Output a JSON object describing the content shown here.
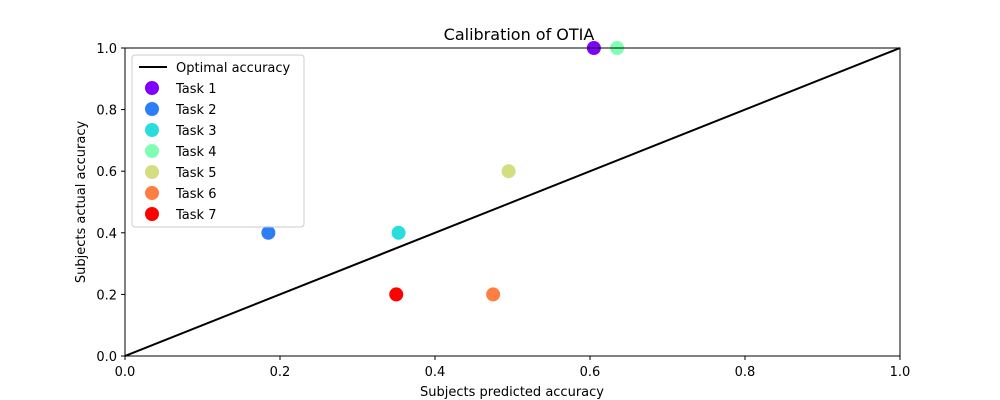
{
  "chart_data": {
    "type": "scatter",
    "title": "Calibration of OTIA",
    "xlabel": "Subjects predicted accuracy",
    "ylabel": "Subjects actual accuracy",
    "xlim": [
      0.0,
      1.0
    ],
    "ylim": [
      0.0,
      1.0
    ],
    "xticks": [
      "0.0",
      "0.2",
      "0.4",
      "0.6",
      "0.8",
      "1.0"
    ],
    "yticks": [
      "0.0",
      "0.2",
      "0.4",
      "0.6",
      "0.8",
      "1.0"
    ],
    "grid": false,
    "legend_position": "top-left",
    "reference_line": {
      "name": "Optimal accuracy",
      "color": "#000000",
      "x": [
        0.0,
        1.0
      ],
      "y": [
        0.0,
        1.0
      ]
    },
    "series": [
      {
        "name": "Task 1",
        "color": "#8000ff",
        "x": 0.605,
        "y": 1.0
      },
      {
        "name": "Task 2",
        "color": "#2c7ef7",
        "x": 0.185,
        "y": 0.4
      },
      {
        "name": "Task 3",
        "color": "#2adddd",
        "x": 0.353,
        "y": 0.4
      },
      {
        "name": "Task 4",
        "color": "#80ffb4",
        "x": 0.635,
        "y": 1.0
      },
      {
        "name": "Task 5",
        "color": "#d4dd80",
        "x": 0.495,
        "y": 0.6
      },
      {
        "name": "Task 6",
        "color": "#ff7e41",
        "x": 0.475,
        "y": 0.2
      },
      {
        "name": "Task 7",
        "color": "#ff0000",
        "x": 0.35,
        "y": 0.2
      }
    ]
  }
}
